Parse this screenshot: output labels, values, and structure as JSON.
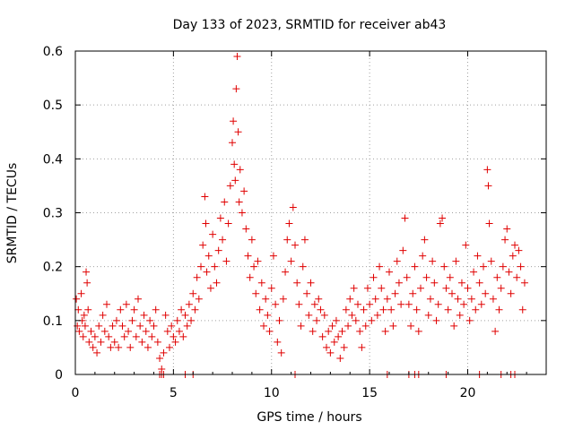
{
  "chart_data": {
    "type": "scatter",
    "title": "Day 133 of 2023, SRMTID for receiver ab43",
    "xlabel": "GPS time / hours",
    "ylabel": "SRMTID / TECUs",
    "xlim": [
      0,
      24
    ],
    "ylim": [
      0,
      0.6
    ],
    "xticks": [
      0,
      5,
      10,
      15,
      20
    ],
    "yticks": [
      0,
      0.1,
      0.2,
      0.3,
      0.4,
      0.5,
      0.6
    ],
    "xtick_labels": [
      "0",
      "5",
      "10",
      "15",
      "20"
    ],
    "ytick_labels": [
      "0",
      "0.1",
      "0.2",
      "0.3",
      "0.4",
      "0.5",
      "0.6"
    ],
    "grid": true,
    "marker": "+",
    "series": [
      {
        "name": "SRMTID",
        "color": "#e00000",
        "points": [
          [
            0.05,
            0.14
          ],
          [
            0.1,
            0.09
          ],
          [
            0.15,
            0.12
          ],
          [
            0.2,
            0.08
          ],
          [
            0.3,
            0.15
          ],
          [
            0.35,
            0.1
          ],
          [
            0.4,
            0.07
          ],
          [
            0.45,
            0.11
          ],
          [
            0.5,
            0.09
          ],
          [
            0.55,
            0.19
          ],
          [
            0.6,
            0.17
          ],
          [
            0.65,
            0.12
          ],
          [
            0.7,
            0.06
          ],
          [
            0.8,
            0.08
          ],
          [
            0.9,
            0.05
          ],
          [
            1.0,
            0.07
          ],
          [
            1.1,
            0.04
          ],
          [
            1.2,
            0.09
          ],
          [
            1.3,
            0.06
          ],
          [
            1.4,
            0.11
          ],
          [
            1.5,
            0.08
          ],
          [
            1.6,
            0.13
          ],
          [
            1.7,
            0.07
          ],
          [
            1.8,
            0.05
          ],
          [
            1.9,
            0.09
          ],
          [
            2.0,
            0.06
          ],
          [
            2.1,
            0.1
          ],
          [
            2.2,
            0.05
          ],
          [
            2.3,
            0.12
          ],
          [
            2.4,
            0.09
          ],
          [
            2.5,
            0.07
          ],
          [
            2.6,
            0.13
          ],
          [
            2.7,
            0.08
          ],
          [
            2.8,
            0.05
          ],
          [
            2.9,
            0.1
          ],
          [
            3.0,
            0.12
          ],
          [
            3.1,
            0.07
          ],
          [
            3.2,
            0.14
          ],
          [
            3.3,
            0.09
          ],
          [
            3.4,
            0.06
          ],
          [
            3.5,
            0.11
          ],
          [
            3.6,
            0.08
          ],
          [
            3.7,
            0.05
          ],
          [
            3.8,
            0.1
          ],
          [
            3.9,
            0.07
          ],
          [
            4.0,
            0.09
          ],
          [
            4.1,
            0.12
          ],
          [
            4.2,
            0.06
          ],
          [
            4.3,
            0.03
          ],
          [
            4.4,
            0.01
          ],
          [
            4.5,
            0.04
          ],
          [
            4.6,
            0.11
          ],
          [
            4.7,
            0.08
          ],
          [
            4.8,
            0.05
          ],
          [
            4.9,
            0.09
          ],
          [
            5.0,
            0.07
          ],
          [
            5.1,
            0.06
          ],
          [
            5.2,
            0.1
          ],
          [
            5.3,
            0.08
          ],
          [
            5.4,
            0.12
          ],
          [
            5.5,
            0.07
          ],
          [
            5.6,
            0.11
          ],
          [
            5.7,
            0.09
          ],
          [
            5.8,
            0.13
          ],
          [
            5.9,
            0.1
          ],
          [
            6.0,
            0.15
          ],
          [
            6.1,
            0.12
          ],
          [
            6.2,
            0.18
          ],
          [
            6.3,
            0.14
          ],
          [
            6.4,
            0.2
          ],
          [
            6.5,
            0.24
          ],
          [
            6.6,
            0.33
          ],
          [
            6.65,
            0.28
          ],
          [
            6.7,
            0.19
          ],
          [
            6.8,
            0.22
          ],
          [
            6.9,
            0.16
          ],
          [
            7.0,
            0.26
          ],
          [
            7.1,
            0.2
          ],
          [
            7.2,
            0.17
          ],
          [
            7.3,
            0.23
          ],
          [
            7.4,
            0.29
          ],
          [
            7.5,
            0.25
          ],
          [
            7.6,
            0.32
          ],
          [
            7.7,
            0.21
          ],
          [
            7.8,
            0.28
          ],
          [
            7.9,
            0.35
          ],
          [
            8.0,
            0.43
          ],
          [
            8.05,
            0.47
          ],
          [
            8.1,
            0.39
          ],
          [
            8.15,
            0.36
          ],
          [
            8.2,
            0.53
          ],
          [
            8.25,
            0.59
          ],
          [
            8.3,
            0.45
          ],
          [
            8.35,
            0.32
          ],
          [
            8.4,
            0.38
          ],
          [
            8.5,
            0.3
          ],
          [
            8.6,
            0.34
          ],
          [
            8.7,
            0.27
          ],
          [
            8.8,
            0.22
          ],
          [
            8.9,
            0.18
          ],
          [
            9.0,
            0.25
          ],
          [
            9.1,
            0.2
          ],
          [
            9.2,
            0.15
          ],
          [
            9.3,
            0.21
          ],
          [
            9.4,
            0.12
          ],
          [
            9.5,
            0.17
          ],
          [
            9.6,
            0.09
          ],
          [
            9.7,
            0.14
          ],
          [
            9.8,
            0.11
          ],
          [
            9.9,
            0.08
          ],
          [
            10.0,
            0.16
          ],
          [
            10.1,
            0.22
          ],
          [
            10.2,
            0.13
          ],
          [
            10.3,
            0.06
          ],
          [
            10.4,
            0.1
          ],
          [
            10.5,
            0.04
          ],
          [
            10.6,
            0.14
          ],
          [
            10.7,
            0.19
          ],
          [
            10.8,
            0.25
          ],
          [
            10.9,
            0.28
          ],
          [
            11.0,
            0.21
          ],
          [
            11.1,
            0.31
          ],
          [
            11.2,
            0.24
          ],
          [
            11.3,
            0.17
          ],
          [
            11.4,
            0.13
          ],
          [
            11.5,
            0.09
          ],
          [
            11.6,
            0.2
          ],
          [
            11.7,
            0.25
          ],
          [
            11.8,
            0.15
          ],
          [
            11.9,
            0.11
          ],
          [
            12.0,
            0.17
          ],
          [
            12.1,
            0.08
          ],
          [
            12.2,
            0.13
          ],
          [
            12.3,
            0.1
          ],
          [
            12.4,
            0.14
          ],
          [
            12.5,
            0.12
          ],
          [
            12.6,
            0.07
          ],
          [
            12.7,
            0.11
          ],
          [
            12.8,
            0.05
          ],
          [
            12.9,
            0.08
          ],
          [
            13.0,
            0.04
          ],
          [
            13.1,
            0.09
          ],
          [
            13.2,
            0.06
          ],
          [
            13.3,
            0.1
          ],
          [
            13.4,
            0.07
          ],
          [
            13.5,
            0.03
          ],
          [
            13.6,
            0.08
          ],
          [
            13.7,
            0.05
          ],
          [
            13.8,
            0.12
          ],
          [
            13.9,
            0.09
          ],
          [
            14.0,
            0.14
          ],
          [
            14.1,
            0.11
          ],
          [
            14.2,
            0.16
          ],
          [
            14.3,
            0.1
          ],
          [
            14.4,
            0.13
          ],
          [
            14.5,
            0.08
          ],
          [
            14.6,
            0.05
          ],
          [
            14.7,
            0.12
          ],
          [
            14.8,
            0.09
          ],
          [
            14.9,
            0.16
          ],
          [
            15.0,
            0.13
          ],
          [
            15.1,
            0.1
          ],
          [
            15.2,
            0.18
          ],
          [
            15.3,
            0.14
          ],
          [
            15.4,
            0.11
          ],
          [
            15.5,
            0.2
          ],
          [
            15.6,
            0.16
          ],
          [
            15.7,
            0.12
          ],
          [
            15.8,
            0.08
          ],
          [
            15.9,
            0.14
          ],
          [
            16.0,
            0.19
          ],
          [
            16.1,
            0.12
          ],
          [
            16.2,
            0.09
          ],
          [
            16.3,
            0.15
          ],
          [
            16.4,
            0.21
          ],
          [
            16.5,
            0.17
          ],
          [
            16.6,
            0.13
          ],
          [
            16.7,
            0.23
          ],
          [
            16.8,
            0.29
          ],
          [
            16.9,
            0.18
          ],
          [
            17.0,
            0.13
          ],
          [
            17.1,
            0.09
          ],
          [
            17.2,
            0.15
          ],
          [
            17.3,
            0.2
          ],
          [
            17.4,
            0.12
          ],
          [
            17.5,
            0.08
          ],
          [
            17.6,
            0.16
          ],
          [
            17.7,
            0.22
          ],
          [
            17.8,
            0.25
          ],
          [
            17.9,
            0.18
          ],
          [
            18.0,
            0.11
          ],
          [
            18.1,
            0.14
          ],
          [
            18.2,
            0.21
          ],
          [
            18.3,
            0.17
          ],
          [
            18.4,
            0.1
          ],
          [
            18.5,
            0.13
          ],
          [
            18.6,
            0.28
          ],
          [
            18.7,
            0.29
          ],
          [
            18.8,
            0.2
          ],
          [
            18.9,
            0.16
          ],
          [
            19.0,
            0.12
          ],
          [
            19.1,
            0.18
          ],
          [
            19.2,
            0.15
          ],
          [
            19.3,
            0.09
          ],
          [
            19.4,
            0.21
          ],
          [
            19.5,
            0.14
          ],
          [
            19.6,
            0.11
          ],
          [
            19.7,
            0.17
          ],
          [
            19.8,
            0.13
          ],
          [
            19.9,
            0.24
          ],
          [
            20.0,
            0.16
          ],
          [
            20.1,
            0.1
          ],
          [
            20.2,
            0.14
          ],
          [
            20.3,
            0.19
          ],
          [
            20.4,
            0.12
          ],
          [
            20.5,
            0.22
          ],
          [
            20.6,
            0.17
          ],
          [
            20.7,
            0.13
          ],
          [
            20.8,
            0.2
          ],
          [
            20.9,
            0.15
          ],
          [
            21.0,
            0.38
          ],
          [
            21.05,
            0.35
          ],
          [
            21.1,
            0.28
          ],
          [
            21.2,
            0.21
          ],
          [
            21.3,
            0.14
          ],
          [
            21.4,
            0.08
          ],
          [
            21.5,
            0.18
          ],
          [
            21.6,
            0.12
          ],
          [
            21.7,
            0.16
          ],
          [
            21.8,
            0.2
          ],
          [
            21.9,
            0.25
          ],
          [
            22.0,
            0.27
          ],
          [
            22.1,
            0.19
          ],
          [
            22.2,
            0.15
          ],
          [
            22.3,
            0.22
          ],
          [
            22.4,
            0.24
          ],
          [
            22.5,
            0.18
          ],
          [
            22.6,
            0.23
          ],
          [
            22.7,
            0.2
          ],
          [
            22.8,
            0.12
          ],
          [
            22.9,
            0.17
          ]
        ],
        "zero_points": [
          4.3,
          4.4,
          4.5,
          5.6,
          6.0,
          11.2,
          15.9,
          17.0,
          17.3,
          17.5,
          18.9,
          20.6,
          21.7,
          22.2,
          22.4
        ]
      }
    ]
  }
}
